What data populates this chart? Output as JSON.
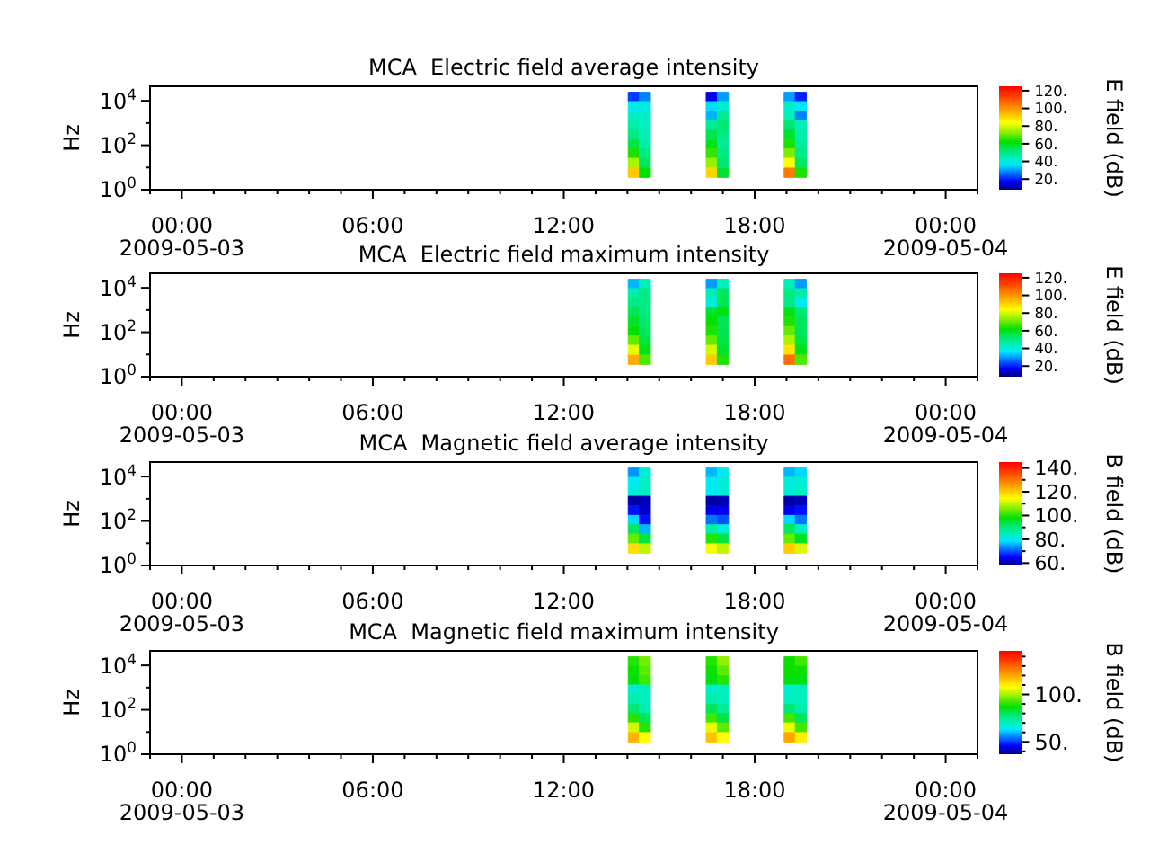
{
  "chart_data": [
    {
      "type": "heatmap",
      "title": "MCA  Electric field average intensity",
      "ylabel": "Hz",
      "clabel": "E field (dB)",
      "log": "y",
      "xlim": [
        -1,
        25
      ],
      "ylim": [
        1,
        45000
      ],
      "xticks": [
        {
          "value": -1,
          "label": null
        },
        {
          "value": 0,
          "label": "00:00\n2009-05-03"
        },
        {
          "value": 1,
          "label": null
        },
        {
          "value": 2,
          "label": null
        },
        {
          "value": 3,
          "label": null
        },
        {
          "value": 4,
          "label": null
        },
        {
          "value": 5,
          "label": null
        },
        {
          "value": 6,
          "label": "06:00"
        },
        {
          "value": 7,
          "label": null
        },
        {
          "value": 8,
          "label": null
        },
        {
          "value": 9,
          "label": null
        },
        {
          "value": 10,
          "label": null
        },
        {
          "value": 11,
          "label": null
        },
        {
          "value": 12,
          "label": "12:00"
        },
        {
          "value": 13,
          "label": null
        },
        {
          "value": 14,
          "label": null
        },
        {
          "value": 15,
          "label": null
        },
        {
          "value": 16,
          "label": null
        },
        {
          "value": 17,
          "label": null
        },
        {
          "value": 18,
          "label": "18:00"
        },
        {
          "value": 19,
          "label": null
        },
        {
          "value": 20,
          "label": null
        },
        {
          "value": 21,
          "label": null
        },
        {
          "value": 22,
          "label": null
        },
        {
          "value": 23,
          "label": null
        },
        {
          "value": 24,
          "label": "00:00\n2009-05-04"
        },
        {
          "value": 25,
          "label": null
        }
      ],
      "yticks": [
        {
          "value": 1,
          "label": "10$^{0}$"
        },
        {
          "value": 10,
          "label": null
        },
        {
          "value": 100,
          "label": "10$^{2}$"
        },
        {
          "value": 1000,
          "label": null
        },
        {
          "value": 10000,
          "label": "10$^{4}$"
        }
      ],
      "clim": [
        8,
        125
      ],
      "cticks": [
        {
          "value": 20,
          "label": "20."
        },
        {
          "value": 40,
          "label": "40."
        },
        {
          "value": 60,
          "label": "60."
        },
        {
          "value": 80,
          "label": "80."
        },
        {
          "value": 100,
          "label": "100."
        },
        {
          "value": 120,
          "label": "120."
        }
      ],
      "x": [
        14.2,
        14.55,
        14.9,
        15.25,
        15.6,
        15.95,
        16.3,
        16.65,
        17.0,
        17.35,
        17.7,
        18.05,
        18.4,
        18.75,
        19.1,
        19.45
      ],
      "y": [
        15000,
        5700,
        2100,
        800,
        300,
        110,
        42,
        16,
        5.8
      ],
      "cells": [
        [
          22,
          28,
          null,
          null,
          null,
          null,
          null,
          16,
          30,
          null,
          null,
          null,
          null,
          null,
          30,
          20
        ],
        [
          38,
          40,
          null,
          null,
          null,
          null,
          null,
          35,
          42,
          null,
          null,
          null,
          null,
          null,
          42,
          36
        ],
        [
          42,
          42,
          null,
          null,
          null,
          null,
          null,
          32,
          48,
          null,
          null,
          null,
          null,
          null,
          44,
          28
        ],
        [
          46,
          43,
          null,
          null,
          null,
          null,
          null,
          48,
          52,
          null,
          null,
          null,
          null,
          null,
          52,
          44
        ],
        [
          50,
          44,
          null,
          null,
          null,
          null,
          null,
          55,
          50,
          null,
          null,
          null,
          null,
          null,
          58,
          46
        ],
        [
          56,
          46,
          null,
          null,
          null,
          null,
          null,
          60,
          48,
          null,
          null,
          null,
          null,
          null,
          64,
          47
        ],
        [
          64,
          50,
          null,
          null,
          null,
          null,
          null,
          66,
          50,
          null,
          null,
          null,
          null,
          null,
          72,
          50
        ],
        [
          76,
          54,
          null,
          null,
          null,
          null,
          null,
          74,
          52,
          null,
          null,
          null,
          null,
          null,
          84,
          54
        ],
        [
          92,
          62,
          null,
          null,
          null,
          null,
          null,
          90,
          58,
          null,
          null,
          null,
          null,
          null,
          104,
          64
        ]
      ]
    },
    {
      "type": "heatmap",
      "title": "MCA  Electric field maximum intensity",
      "ylabel": "Hz",
      "clabel": "E field (dB)",
      "log": "y",
      "xlim": [
        -1,
        25
      ],
      "ylim": [
        1,
        45000
      ],
      "xticks": [
        {
          "value": -1,
          "label": null
        },
        {
          "value": 0,
          "label": "00:00\n2009-05-03"
        },
        {
          "value": 1,
          "label": null
        },
        {
          "value": 2,
          "label": null
        },
        {
          "value": 3,
          "label": null
        },
        {
          "value": 4,
          "label": null
        },
        {
          "value": 5,
          "label": null
        },
        {
          "value": 6,
          "label": "06:00"
        },
        {
          "value": 7,
          "label": null
        },
        {
          "value": 8,
          "label": null
        },
        {
          "value": 9,
          "label": null
        },
        {
          "value": 10,
          "label": null
        },
        {
          "value": 11,
          "label": null
        },
        {
          "value": 12,
          "label": "12:00"
        },
        {
          "value": 13,
          "label": null
        },
        {
          "value": 14,
          "label": null
        },
        {
          "value": 15,
          "label": null
        },
        {
          "value": 16,
          "label": null
        },
        {
          "value": 17,
          "label": null
        },
        {
          "value": 18,
          "label": "18:00"
        },
        {
          "value": 19,
          "label": null
        },
        {
          "value": 20,
          "label": null
        },
        {
          "value": 21,
          "label": null
        },
        {
          "value": 22,
          "label": null
        },
        {
          "value": 23,
          "label": null
        },
        {
          "value": 24,
          "label": "00:00\n2009-05-04"
        },
        {
          "value": 25,
          "label": null
        }
      ],
      "yticks": [
        {
          "value": 1,
          "label": "10$^{0}$"
        },
        {
          "value": 10,
          "label": null
        },
        {
          "value": 100,
          "label": "10$^{2}$"
        },
        {
          "value": 1000,
          "label": null
        },
        {
          "value": 10000,
          "label": "10$^{4}$"
        }
      ],
      "clim": [
        8,
        125
      ],
      "cticks": [
        {
          "value": 20,
          "label": "20."
        },
        {
          "value": 40,
          "label": "40."
        },
        {
          "value": 60,
          "label": "60."
        },
        {
          "value": 80,
          "label": "80."
        },
        {
          "value": 100,
          "label": "100."
        },
        {
          "value": 120,
          "label": "120."
        }
      ],
      "x": [
        14.2,
        14.55,
        14.9,
        15.25,
        15.6,
        15.95,
        16.3,
        16.65,
        17.0,
        17.35,
        17.7,
        18.05,
        18.4,
        18.75,
        19.1,
        19.45
      ],
      "y": [
        15000,
        5700,
        2100,
        800,
        300,
        110,
        42,
        16,
        5.8
      ],
      "cells": [
        [
          32,
          44,
          null,
          null,
          null,
          null,
          null,
          30,
          44,
          null,
          null,
          null,
          null,
          null,
          44,
          30
        ],
        [
          46,
          50,
          null,
          null,
          null,
          null,
          null,
          44,
          54,
          null,
          null,
          null,
          null,
          null,
          50,
          46
        ],
        [
          50,
          50,
          null,
          null,
          null,
          null,
          null,
          40,
          55,
          null,
          null,
          null,
          null,
          null,
          50,
          38
        ],
        [
          55,
          50,
          null,
          null,
          null,
          null,
          null,
          58,
          60,
          null,
          null,
          null,
          null,
          null,
          60,
          52
        ],
        [
          58,
          52,
          null,
          null,
          null,
          null,
          null,
          62,
          55,
          null,
          null,
          null,
          null,
          null,
          64,
          54
        ],
        [
          62,
          54,
          null,
          null,
          null,
          null,
          null,
          64,
          55,
          null,
          null,
          null,
          null,
          null,
          70,
          55
        ],
        [
          70,
          56,
          null,
          null,
          null,
          null,
          null,
          70,
          56,
          null,
          null,
          null,
          null,
          null,
          76,
          56
        ],
        [
          82,
          60,
          null,
          null,
          null,
          null,
          null,
          80,
          58,
          null,
          null,
          null,
          null,
          null,
          88,
          60
        ],
        [
          96,
          68,
          null,
          null,
          null,
          null,
          null,
          92,
          64,
          null,
          null,
          null,
          null,
          null,
          106,
          68
        ]
      ]
    },
    {
      "type": "heatmap",
      "title": "MCA  Magnetic field average intensity",
      "ylabel": "Hz",
      "clabel": "B field (dB)",
      "log": "y",
      "xlim": [
        -1,
        25
      ],
      "ylim": [
        1,
        45000
      ],
      "xticks": [
        {
          "value": -1,
          "label": null
        },
        {
          "value": 0,
          "label": "00:00\n2009-05-03"
        },
        {
          "value": 1,
          "label": null
        },
        {
          "value": 2,
          "label": null
        },
        {
          "value": 3,
          "label": null
        },
        {
          "value": 4,
          "label": null
        },
        {
          "value": 5,
          "label": null
        },
        {
          "value": 6,
          "label": "06:00"
        },
        {
          "value": 7,
          "label": null
        },
        {
          "value": 8,
          "label": null
        },
        {
          "value": 9,
          "label": null
        },
        {
          "value": 10,
          "label": null
        },
        {
          "value": 11,
          "label": null
        },
        {
          "value": 12,
          "label": "12:00"
        },
        {
          "value": 13,
          "label": null
        },
        {
          "value": 14,
          "label": null
        },
        {
          "value": 15,
          "label": null
        },
        {
          "value": 16,
          "label": null
        },
        {
          "value": 17,
          "label": null
        },
        {
          "value": 18,
          "label": "18:00"
        },
        {
          "value": 19,
          "label": null
        },
        {
          "value": 20,
          "label": null
        },
        {
          "value": 21,
          "label": null
        },
        {
          "value": 22,
          "label": null
        },
        {
          "value": 23,
          "label": null
        },
        {
          "value": 24,
          "label": "00:00\n2009-05-04"
        },
        {
          "value": 25,
          "label": null
        }
      ],
      "yticks": [
        {
          "value": 1,
          "label": "10$^{0}$"
        },
        {
          "value": 10,
          "label": null
        },
        {
          "value": 100,
          "label": "10$^{2}$"
        },
        {
          "value": 1000,
          "label": null
        },
        {
          "value": 10000,
          "label": "10$^{4}$"
        }
      ],
      "clim": [
        58,
        145
      ],
      "cticks": [
        {
          "value": 60,
          "label": "60."
        },
        {
          "value": 70,
          "label": null
        },
        {
          "value": 80,
          "label": "80."
        },
        {
          "value": 90,
          "label": null
        },
        {
          "value": 100,
          "label": "100."
        },
        {
          "value": 110,
          "label": null
        },
        {
          "value": 120,
          "label": "120."
        },
        {
          "value": 130,
          "label": null
        },
        {
          "value": 140,
          "label": "140."
        }
      ],
      "x": [
        14.2,
        14.55,
        14.9,
        15.25,
        15.6,
        15.95,
        16.3,
        16.65,
        17.0,
        17.35,
        17.7,
        18.05,
        18.4,
        18.75,
        19.1,
        19.45
      ],
      "y": [
        15000,
        5700,
        2100,
        800,
        300,
        110,
        42,
        16,
        5.8
      ],
      "cells": [
        [
          74,
          82,
          null,
          null,
          null,
          null,
          null,
          76,
          80,
          null,
          null,
          null,
          null,
          null,
          76,
          78
        ],
        [
          80,
          84,
          null,
          null,
          null,
          null,
          null,
          80,
          82,
          null,
          null,
          null,
          null,
          null,
          82,
          82
        ],
        [
          82,
          84,
          null,
          null,
          null,
          null,
          null,
          80,
          82,
          null,
          null,
          null,
          null,
          null,
          82,
          84
        ],
        [
          60,
          61,
          null,
          null,
          null,
          null,
          null,
          60,
          61,
          null,
          null,
          null,
          null,
          null,
          60,
          61
        ],
        [
          66,
          62,
          null,
          null,
          null,
          null,
          null,
          64,
          64,
          null,
          null,
          null,
          null,
          null,
          64,
          66
        ],
        [
          78,
          66,
          null,
          null,
          null,
          null,
          null,
          72,
          70,
          null,
          null,
          null,
          null,
          null,
          78,
          72
        ],
        [
          92,
          76,
          null,
          null,
          null,
          null,
          null,
          86,
          82,
          null,
          null,
          null,
          null,
          null,
          92,
          84
        ],
        [
          104,
          94,
          null,
          null,
          null,
          null,
          null,
          100,
          94,
          null,
          null,
          null,
          null,
          null,
          104,
          96
        ],
        [
          118,
          110,
          null,
          null,
          null,
          null,
          null,
          114,
          110,
          null,
          null,
          null,
          null,
          null,
          120,
          112
        ]
      ]
    },
    {
      "type": "heatmap",
      "title": "MCA  Magnetic field maximum intensity",
      "ylabel": "Hz",
      "clabel": "B field (dB)",
      "log": "y",
      "xlim": [
        -1,
        25
      ],
      "ylim": [
        1,
        45000
      ],
      "xticks": [
        {
          "value": -1,
          "label": null
        },
        {
          "value": 0,
          "label": "00:00\n2009-05-03"
        },
        {
          "value": 1,
          "label": null
        },
        {
          "value": 2,
          "label": null
        },
        {
          "value": 3,
          "label": null
        },
        {
          "value": 4,
          "label": null
        },
        {
          "value": 5,
          "label": null
        },
        {
          "value": 6,
          "label": "06:00"
        },
        {
          "value": 7,
          "label": null
        },
        {
          "value": 8,
          "label": null
        },
        {
          "value": 9,
          "label": null
        },
        {
          "value": 10,
          "label": null
        },
        {
          "value": 11,
          "label": null
        },
        {
          "value": 12,
          "label": "12:00"
        },
        {
          "value": 13,
          "label": null
        },
        {
          "value": 14,
          "label": null
        },
        {
          "value": 15,
          "label": null
        },
        {
          "value": 16,
          "label": null
        },
        {
          "value": 17,
          "label": null
        },
        {
          "value": 18,
          "label": "18:00"
        },
        {
          "value": 19,
          "label": null
        },
        {
          "value": 20,
          "label": null
        },
        {
          "value": 21,
          "label": null
        },
        {
          "value": 22,
          "label": null
        },
        {
          "value": 23,
          "label": null
        },
        {
          "value": 24,
          "label": "00:00\n2009-05-04"
        },
        {
          "value": 25,
          "label": null
        }
      ],
      "yticks": [
        {
          "value": 1,
          "label": "10$^{0}$"
        },
        {
          "value": 10,
          "label": null
        },
        {
          "value": 100,
          "label": "10$^{2}$"
        },
        {
          "value": 1000,
          "label": null
        },
        {
          "value": 10000,
          "label": "10$^{4}$"
        }
      ],
      "clim": [
        37,
        146
      ],
      "cticks": [
        {
          "value": 40,
          "label": null
        },
        {
          "value": 50,
          "label": "50."
        },
        {
          "value": 60,
          "label": null
        },
        {
          "value": 70,
          "label": null
        },
        {
          "value": 80,
          "label": null
        },
        {
          "value": 90,
          "label": null
        },
        {
          "value": 100,
          "label": "100."
        },
        {
          "value": 110,
          "label": null
        },
        {
          "value": 120,
          "label": null
        },
        {
          "value": 130,
          "label": null
        },
        {
          "value": 140,
          "label": null
        }
      ],
      "x": [
        14.2,
        14.55,
        14.9,
        15.25,
        15.6,
        15.95,
        16.3,
        16.65,
        17.0,
        17.35,
        17.7,
        18.05,
        18.4,
        18.75,
        19.1,
        19.45
      ],
      "y": [
        15000,
        5700,
        2100,
        800,
        300,
        110,
        42,
        16,
        5.8
      ],
      "cells": [
        [
          90,
          96,
          null,
          null,
          null,
          null,
          null,
          90,
          98,
          null,
          null,
          null,
          null,
          null,
          88,
          92
        ],
        [
          88,
          94,
          null,
          null,
          null,
          null,
          null,
          88,
          94,
          null,
          null,
          null,
          null,
          null,
          88,
          88
        ],
        [
          86,
          92,
          null,
          null,
          null,
          null,
          null,
          86,
          90,
          null,
          null,
          null,
          null,
          null,
          86,
          86
        ],
        [
          68,
          70,
          null,
          null,
          null,
          null,
          null,
          68,
          70,
          null,
          null,
          null,
          null,
          null,
          68,
          70
        ],
        [
          72,
          70,
          null,
          null,
          null,
          null,
          null,
          72,
          70,
          null,
          null,
          null,
          null,
          null,
          70,
          70
        ],
        [
          78,
          72,
          null,
          null,
          null,
          null,
          null,
          80,
          74,
          null,
          null,
          null,
          null,
          null,
          78,
          72
        ],
        [
          90,
          80,
          null,
          null,
          null,
          null,
          null,
          92,
          82,
          null,
          null,
          null,
          null,
          null,
          92,
          80
        ],
        [
          104,
          90,
          null,
          null,
          null,
          null,
          null,
          106,
          94,
          null,
          null,
          null,
          null,
          null,
          106,
          92
        ],
        [
          118,
          108,
          null,
          null,
          null,
          null,
          null,
          116,
          108,
          null,
          null,
          null,
          null,
          null,
          120,
          110
        ]
      ]
    }
  ]
}
